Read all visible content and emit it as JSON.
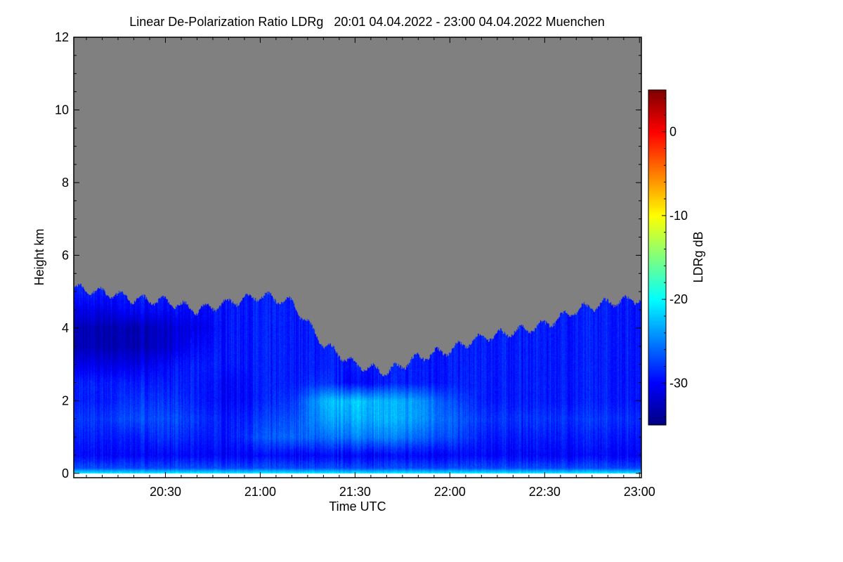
{
  "chart_data": {
    "type": "heatmap",
    "title": "Linear De-Polarization Ratio LDRg   20:01 04.04.2022 - 23:00 04.04.2022 Muenchen",
    "xlabel": "Time UTC",
    "ylabel": "Height km",
    "colorbar_label": "LDRg dB",
    "colormap": "jet",
    "no_data_color": "#808080",
    "xlim_minutes_utc": [
      1201,
      1380.6
    ],
    "ylim_km": [
      -0.12,
      12
    ],
    "clim_db": [
      -35,
      5
    ],
    "x_ticks": [
      {
        "minutes": 1230,
        "label": "20:30"
      },
      {
        "minutes": 1260,
        "label": "21:00"
      },
      {
        "minutes": 1290,
        "label": "21:30"
      },
      {
        "minutes": 1320,
        "label": "22:00"
      },
      {
        "minutes": 1350,
        "label": "22:30"
      },
      {
        "minutes": 1380,
        "label": "23:00"
      }
    ],
    "y_ticks": [
      {
        "value": 0,
        "label": "0"
      },
      {
        "value": 2,
        "label": "2"
      },
      {
        "value": 4,
        "label": "4"
      },
      {
        "value": 6,
        "label": "6"
      },
      {
        "value": 8,
        "label": "8"
      },
      {
        "value": 10,
        "label": "10"
      },
      {
        "value": 12,
        "label": "12"
      }
    ],
    "colorbar_ticks": [
      {
        "value": 0,
        "label": "0"
      },
      {
        "value": -10,
        "label": "-10"
      },
      {
        "value": -20,
        "label": "-20"
      },
      {
        "value": -30,
        "label": "-30"
      }
    ],
    "grid_times_minutes": [
      1200,
      1210,
      1220,
      1230,
      1240,
      1250,
      1260,
      1270,
      1280,
      1290,
      1300,
      1310,
      1320,
      1330,
      1340,
      1350,
      1360,
      1370,
      1380
    ],
    "grid_heights_km": [
      0,
      0.15,
      0.5,
      1,
      1.5,
      2,
      2.5,
      3,
      3.5,
      4,
      4.5,
      5
    ],
    "signal_top_km": [
      5.1,
      5.0,
      4.8,
      4.75,
      4.5,
      4.7,
      4.9,
      4.7,
      3.55,
      3.0,
      2.8,
      3.2,
      3.4,
      3.75,
      3.9,
      4.1,
      4.5,
      4.7,
      4.8
    ],
    "ldr_db": [
      [
        -20,
        -20,
        -20,
        -20,
        -20,
        -20,
        -20,
        -20,
        -20,
        -20,
        -20,
        -20,
        -20,
        -20,
        -20,
        -20,
        -20,
        -20,
        -20
      ],
      [
        -27,
        -27,
        -27,
        -27,
        -27,
        -27,
        -27,
        -27,
        -27,
        -27,
        -27,
        -27,
        -27,
        -27,
        -27,
        -27,
        -27,
        -27,
        -27
      ],
      [
        -30,
        -30,
        -30,
        -30,
        -30,
        -30,
        -30,
        -30,
        -30,
        -30,
        -30,
        -30,
        -30,
        -30,
        -30,
        -30,
        -30,
        -30,
        -30
      ],
      [
        -29,
        -29,
        -29,
        -28,
        -29,
        -29,
        -27,
        -26,
        -26,
        -25,
        -25,
        -26,
        -27,
        -29,
        -29,
        -29,
        -29,
        -29,
        -29
      ],
      [
        -28,
        -28,
        -27,
        -27,
        -28,
        -29,
        -28,
        -27,
        -24,
        -23,
        -23,
        -24,
        -26,
        -28,
        -28,
        -28,
        -28,
        -28,
        -28
      ],
      [
        -29,
        -29,
        -28,
        -28,
        -29,
        -30,
        -29,
        -28,
        -23,
        -22,
        -23,
        -24,
        -27,
        -29,
        -29,
        -29,
        -29,
        -29,
        -29
      ],
      [
        -29,
        -29,
        -29,
        -29,
        -29,
        -30,
        -29,
        -29,
        -28,
        -30,
        -29,
        -29,
        -29,
        -29,
        -29,
        -29,
        -29,
        -29,
        -29
      ],
      [
        -31,
        -31,
        -31,
        -30,
        -29,
        -29,
        -29,
        -29,
        -29,
        -29,
        -29,
        -29,
        -29,
        -29,
        -29,
        -29,
        -29,
        -29,
        -29
      ],
      [
        -33,
        -33,
        -33,
        -32,
        -30,
        -29,
        -29,
        -29,
        -29,
        -29,
        -29,
        -29,
        -29,
        -29,
        -29,
        -29,
        -29,
        -29,
        -29
      ],
      [
        -33,
        -33,
        -33,
        -32,
        -31,
        -29,
        -29,
        -29,
        -29,
        -29,
        -29,
        -29,
        -29,
        -29,
        -29,
        -29,
        -29,
        -29,
        -29
      ],
      [
        -31,
        -31,
        -30,
        -30,
        -30,
        -29,
        -29,
        -29,
        -29,
        -29,
        -29,
        -29,
        -29,
        -29,
        -29,
        -29,
        -29,
        -29,
        -29
      ],
      [
        -29,
        -29,
        -29,
        -29,
        -29,
        -29,
        -29,
        -29,
        -29,
        -29,
        -29,
        -29,
        -29,
        -29,
        -29,
        -29,
        -29,
        -29,
        -29
      ]
    ]
  }
}
